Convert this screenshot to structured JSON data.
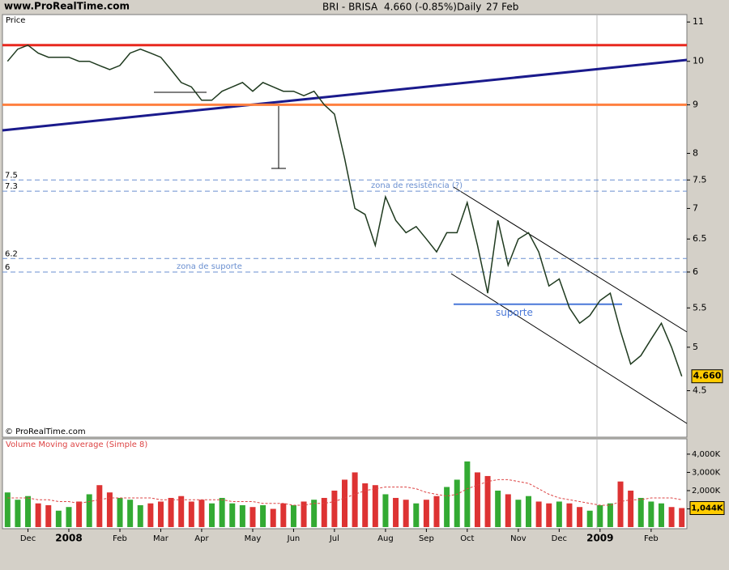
{
  "header": {
    "site": "www.ProRealTime.com",
    "symbol": "BRI - BRISA",
    "quote": "4.660 (-0.85%)",
    "period": "Daily",
    "date": "27 Feb"
  },
  "chart_data": [
    {
      "type": "line",
      "y_label": "Price",
      "credit": "© ProRealTime.com",
      "log_scale": true,
      "categories": [
        null,
        null,
        "Dec",
        null,
        null,
        null,
        "2008",
        null,
        null,
        null,
        null,
        "Feb",
        null,
        null,
        null,
        "Mar",
        null,
        null,
        null,
        "Apr",
        null,
        null,
        null,
        null,
        "May",
        null,
        null,
        null,
        "Jun",
        null,
        null,
        null,
        "Jul",
        null,
        null,
        null,
        null,
        "Aug",
        null,
        null,
        null,
        "Sep",
        null,
        null,
        null,
        "Oct",
        null,
        null,
        null,
        null,
        "Nov",
        null,
        null,
        null,
        "Dec",
        null,
        null,
        null,
        "2009",
        null,
        null,
        null,
        null,
        "Feb",
        null,
        null,
        null
      ],
      "series": [
        {
          "name": "BRI - BRISA",
          "color": "#1f3a1f",
          "values": [
            10.0,
            10.3,
            10.4,
            10.2,
            10.1,
            10.1,
            10.1,
            10.0,
            10.0,
            9.9,
            9.8,
            9.9,
            10.2,
            10.3,
            10.2,
            10.1,
            9.8,
            9.5,
            9.4,
            9.1,
            9.1,
            9.3,
            9.4,
            9.5,
            9.3,
            9.5,
            9.4,
            9.3,
            9.3,
            9.2,
            9.3,
            9.0,
            8.8,
            7.9,
            7.0,
            6.9,
            6.4,
            7.2,
            6.8,
            6.6,
            6.7,
            6.5,
            6.3,
            6.6,
            6.6,
            7.1,
            6.4,
            5.7,
            6.8,
            6.1,
            6.5,
            6.6,
            6.3,
            5.8,
            5.9,
            5.5,
            5.3,
            5.4,
            5.6,
            5.7,
            5.2,
            4.8,
            4.9,
            5.1,
            5.3,
            5.0,
            4.66
          ]
        }
      ],
      "ylim": [
        4.02,
        11.2
      ],
      "yticks": [
        4.5,
        5,
        5.5,
        6,
        6.5,
        7,
        7.5,
        8,
        9,
        10,
        11
      ],
      "last": {
        "value": 4.66,
        "label": "4.660",
        "color": "#ffcc00"
      },
      "levels": [
        {
          "value": 10.4,
          "color": "#e8281e",
          "style": "solid"
        },
        {
          "value": 9,
          "color": "#ff8040",
          "style": "solid"
        },
        {
          "value": 7.5,
          "color": "#6a8fd0",
          "style": "dashed"
        },
        {
          "value": 7.3,
          "color": "#6a8fd0",
          "style": "dashed"
        },
        {
          "value": 6.2,
          "color": "#6a8fd0",
          "style": "dashed"
        },
        {
          "value": 6,
          "color": "#6a8fd0",
          "style": "dashed"
        }
      ],
      "annotations": [
        {
          "text": "zona de resistência (?)",
          "value": 7.4
        },
        {
          "text": "zona de suporte",
          "value": 6.08
        },
        {
          "text": "suporte",
          "value": 5.55
        }
      ]
    },
    {
      "type": "bar",
      "title": "Volume Moving average (Simple 8)",
      "up_color": "#33aa33",
      "down_color": "#dd3333",
      "ma_color": "#dd4444",
      "values": [
        1900000,
        1500000,
        1700000,
        1300000,
        1200000,
        900000,
        1100000,
        1400000,
        1800000,
        2300000,
        1900000,
        1600000,
        1500000,
        1200000,
        1300000,
        1400000,
        1600000,
        1700000,
        1400000,
        1500000,
        1300000,
        1600000,
        1300000,
        1200000,
        1100000,
        1200000,
        1000000,
        1300000,
        1200000,
        1400000,
        1500000,
        1600000,
        2000000,
        2600000,
        3000000,
        2400000,
        2300000,
        1800000,
        1600000,
        1500000,
        1300000,
        1500000,
        1700000,
        2200000,
        2600000,
        3600000,
        3000000,
        2800000,
        2000000,
        1800000,
        1500000,
        1700000,
        1400000,
        1300000,
        1400000,
        1300000,
        1100000,
        900000,
        1200000,
        1300000,
        2500000,
        2000000,
        1600000,
        1400000,
        1300000,
        1100000,
        1044000
      ],
      "ma": [
        1600000,
        1600000,
        1600000,
        1500000,
        1500000,
        1400000,
        1400000,
        1300000,
        1400000,
        1500000,
        1600000,
        1600000,
        1600000,
        1600000,
        1600000,
        1500000,
        1500000,
        1500000,
        1500000,
        1500000,
        1500000,
        1500000,
        1400000,
        1400000,
        1400000,
        1300000,
        1300000,
        1300000,
        1200000,
        1200000,
        1300000,
        1300000,
        1400000,
        1600000,
        1800000,
        2000000,
        2100000,
        2200000,
        2200000,
        2200000,
        2100000,
        1900000,
        1800000,
        1700000,
        1800000,
        2100000,
        2300000,
        2500000,
        2600000,
        2600000,
        2500000,
        2400000,
        2100000,
        1800000,
        1600000,
        1500000,
        1400000,
        1300000,
        1200000,
        1200000,
        1400000,
        1500000,
        1500000,
        1600000,
        1600000,
        1600000,
        1500000
      ],
      "ylim": [
        0,
        4840000
      ],
      "yticks": [
        {
          "value": 1000000,
          "label": "1,000K"
        },
        {
          "value": 2000000,
          "label": "2,000K"
        },
        {
          "value": 3000000,
          "label": "3,000K"
        },
        {
          "value": 4000000,
          "label": "4,000K"
        }
      ],
      "last": {
        "value": 1044000,
        "label": "1,044K",
        "color": "#ffcc00"
      }
    }
  ]
}
